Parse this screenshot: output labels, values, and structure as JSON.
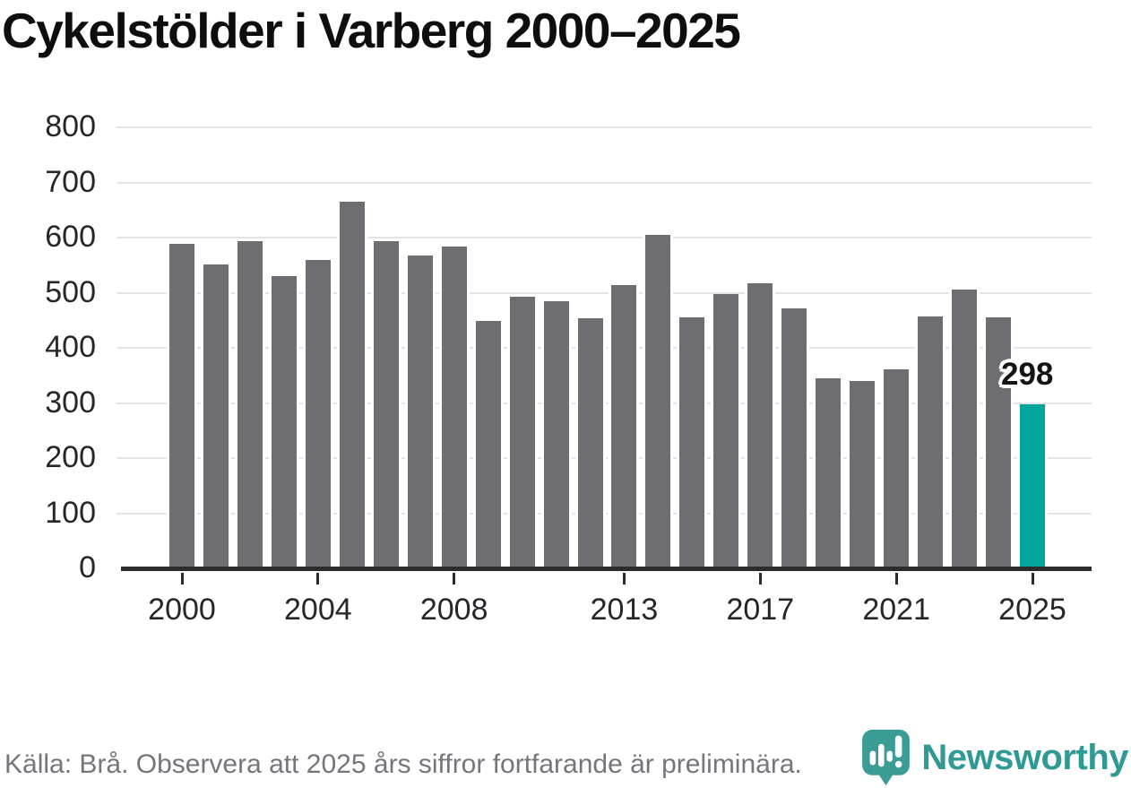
{
  "title": "Cykelstölder i Varberg 2000–2025",
  "chart_data": {
    "type": "bar",
    "title": "Cykelstölder i Varberg 2000–2025",
    "categories": [
      2000,
      2001,
      2002,
      2003,
      2004,
      2005,
      2006,
      2007,
      2008,
      2009,
      2010,
      2011,
      2012,
      2013,
      2014,
      2015,
      2016,
      2017,
      2018,
      2019,
      2020,
      2021,
      2022,
      2023,
      2024,
      2025
    ],
    "values": [
      588,
      552,
      594,
      530,
      560,
      665,
      593,
      567,
      583,
      448,
      492,
      485,
      453,
      514,
      605,
      455,
      497,
      517,
      471,
      345,
      340,
      361,
      457,
      506,
      455,
      298
    ],
    "xlabel": "",
    "ylabel": "",
    "ylim": [
      0,
      800
    ],
    "yticks": [
      0,
      100,
      200,
      300,
      400,
      500,
      600,
      700,
      800
    ],
    "xtick_labels": [
      "2000",
      "2004",
      "2008",
      "2013",
      "2017",
      "2021",
      "2025"
    ],
    "xtick_indices": [
      0,
      4,
      8,
      13,
      17,
      21,
      25
    ],
    "grid": true,
    "legend": false,
    "highlight_category": 2025,
    "data_label": {
      "text": "298",
      "category": 2025
    },
    "colors": {
      "bar": "#6e6d72",
      "highlight_bar": "#00a59c",
      "gridline": "#e4e4e4",
      "axis": "#2b2b2b",
      "tick_label": "#26262b",
      "title": "#0e0e0e"
    }
  },
  "annotation": {
    "text": "298"
  },
  "footer": {
    "source_text": "Källa: Brå. Observera att 2025 års siffror fortfarande är preliminära.",
    "source_color": "#75767c"
  },
  "logo": {
    "text": "Newsworthy",
    "text_color": "#2f9a93",
    "icon_color": "#3a9c95",
    "icon": "newsworthy-chart-bubble-icon"
  }
}
